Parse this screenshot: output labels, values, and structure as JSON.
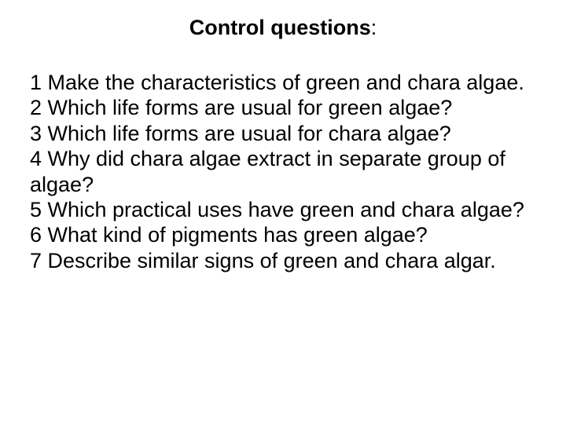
{
  "title": "Control questions",
  "title_colon": ":",
  "title_fontsize": 27,
  "body_fontsize": 27,
  "background_color": "#ffffff",
  "text_color": "#000000",
  "questions": [
    "1 Make the characteristics of green and chara algae.",
    "2 Which life forms are usual for green algae?",
    "3 Which life forms are usual for chara algae?",
    "4 Why did chara algae extract in separate group of algae?",
    "5 Which practical uses have green and chara algae?",
    "6 What kind of pigments has green algae?",
    "7 Describe similar signs of green and chara algar."
  ]
}
